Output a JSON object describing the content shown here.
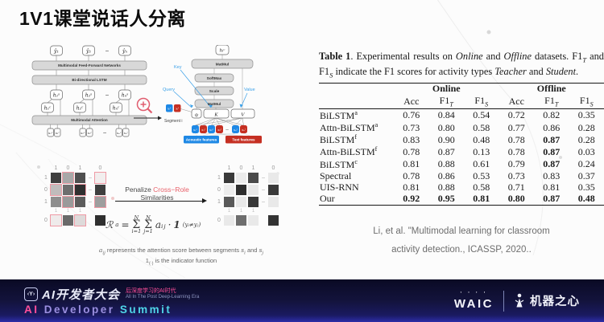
{
  "slide": {
    "title": "1V1课堂说话人分离"
  },
  "architecture": {
    "outputs": [
      "ŷ₁",
      "ŷ₂",
      "−",
      "ŷₙ"
    ],
    "ffn_label": "Multimodal Feed-Forward Networks",
    "lstm_label": "Bi-directional LSTM",
    "hidden_s": [
      "h₁ˢ",
      "h₂ˢ",
      "−",
      "hₙˢ"
    ],
    "hidden_c": [
      "h₁ᶜ",
      "h₂ᶜ",
      "hₙᶜ"
    ],
    "attention_label": "Multimodal Attention",
    "inputs": [
      "x₁ᵃ",
      "x₁ᵗ",
      "x₂ᵃ",
      "x₂ᵗ",
      "−",
      "xₙᵃ",
      "xₙᵗ"
    ]
  },
  "attention_detail": {
    "output_node": "hᵢᶜ",
    "ops": [
      "MatMul",
      "SoftMax",
      "Scale",
      "MatMul"
    ],
    "key_label": "Key",
    "query_label": "Query",
    "value_label": "Value",
    "qkv": [
      "qᵢ",
      "K",
      "V"
    ],
    "segment_label": "Segment i",
    "segment_nodes": [
      "xᵢᵃ",
      "xᵢᵗ"
    ],
    "input_nodes": [
      "x₁ᵃ",
      "x₁ᵗ",
      "x₂ᵃ",
      "x₂ᵗ",
      "−",
      "xₙᵃ",
      "xₙᵗ"
    ],
    "acoustic_label": "Acoustic features",
    "text_label": "Text features",
    "colors": {
      "acoustic": "#1e88e5",
      "text": "#c52f22",
      "annotation": "#3aa0e8"
    }
  },
  "penalty": {
    "label_segments": [
      {
        "t": "Penalize ",
        "s": ""
      },
      {
        "t": "Cross−Role",
        "s": "hl"
      },
      {
        "t": " Similarities",
        "s": ""
      }
    ],
    "before": {
      "col_labels": [
        "1",
        "0",
        "1"
      ],
      "extra_col_label": "0",
      "row_labels": [
        "1",
        "0",
        "1"
      ],
      "mini_labels": [
        "1",
        "1",
        "1"
      ],
      "bottom_label": "0",
      "cells": [
        [
          "#3f3f3f",
          "#a8a8a8",
          "#4f4f4f"
        ],
        [
          "#c0bcbc",
          "#6e6e6e",
          "#2f2f2f"
        ],
        [
          "#8e8e8e",
          "#9a9a9a",
          "#5c5c5c"
        ]
      ],
      "borders": [
        [
          0,
          1,
          0
        ],
        [
          1,
          0,
          1
        ],
        [
          0,
          1,
          0
        ]
      ],
      "extra_col": [
        "#f2eeee",
        "#3f3f3f",
        "#9e9e9e"
      ],
      "extra_col_borders": [
        1,
        0,
        1
      ],
      "bottom_cells": [
        "#efebeb",
        "#6a6a6a",
        "#dedada"
      ],
      "bottom_borders": [
        1,
        0,
        1
      ],
      "corner": "#2f2f2f"
    },
    "after": {
      "col_labels": [
        "1",
        "0",
        "1"
      ],
      "extra_col_label": "0",
      "row_labels": [
        "1",
        "0",
        "1"
      ],
      "mini_labels": [
        "1",
        "1",
        "1"
      ],
      "bottom_label": "0",
      "cells": [
        [
          "#3a3a3a",
          "#ebebeb",
          "#4a4a4a"
        ],
        [
          "#ededed",
          "#2e2e2e",
          "#e8e8e8"
        ],
        [
          "#5a5a5a",
          "#e9e9e9",
          "#383838"
        ]
      ],
      "borders": [
        [
          0,
          0,
          0
        ],
        [
          0,
          0,
          0
        ],
        [
          0,
          0,
          0
        ]
      ],
      "extra_col": [
        "#e9e9e9",
        "#3a3a3a",
        "#e9e9e9"
      ],
      "extra_col_borders": [
        0,
        0,
        0
      ],
      "bottom_cells": [
        "#e9e9e9",
        "#6e6e6e",
        "#e9e9e9"
      ],
      "bottom_borders": [
        0,
        0,
        0
      ],
      "corner": "#333333"
    },
    "formula": {
      "lhs": "ℛ",
      "lhs_sub": "a",
      "eq": "=",
      "sum_sym": "Σ",
      "sum_top": "N",
      "sum_bot1": "i=1",
      "sum_bot2": "j=1",
      "term": "aᵢⱼ",
      "dot": "·",
      "one": "1",
      "cond": "(yᵢ≠yⱼ)"
    },
    "note1_segments": [
      {
        "t": "a",
        "s": "i"
      },
      {
        "t": "ij",
        "s": "sub i"
      },
      {
        "t": " represents the attention score between segments ",
        "s": ""
      },
      {
        "t": "s",
        "s": "i"
      },
      {
        "t": "i",
        "s": "sub i"
      },
      {
        "t": " and ",
        "s": ""
      },
      {
        "t": "s",
        "s": "i"
      },
      {
        "t": "j",
        "s": "sub i"
      }
    ],
    "note2_segments": [
      {
        "t": "1",
        "s": "b"
      },
      {
        "t": "(·)",
        "s": "sub"
      },
      {
        "t": " is the indicator function",
        "s": ""
      }
    ]
  },
  "table": {
    "caption_segments": [
      {
        "t": "Table 1",
        "s": "b"
      },
      {
        "t": ". Experimental results on ",
        "s": ""
      },
      {
        "t": "Online",
        "s": "i"
      },
      {
        "t": " and ",
        "s": ""
      },
      {
        "t": "Offline",
        "s": "i"
      },
      {
        "t": " datasets. F1",
        "s": ""
      },
      {
        "t": "T",
        "s": "sub i"
      },
      {
        "t": " and F1",
        "s": ""
      },
      {
        "t": "S",
        "s": "sub i"
      },
      {
        "t": " indicate the F1 scores for activity types ",
        "s": ""
      },
      {
        "t": "Teacher",
        "s": "i"
      },
      {
        "t": " and ",
        "s": ""
      },
      {
        "t": "Student",
        "s": "i"
      },
      {
        "t": ".",
        "s": ""
      }
    ],
    "group_headers": [
      "Online",
      "Offline"
    ],
    "col_headers": [
      {
        "t": "Acc"
      },
      {
        "t": "F1",
        "sub": "T"
      },
      {
        "t": "F1",
        "sub": "S"
      },
      {
        "t": "Acc"
      },
      {
        "t": "F1",
        "sub": "T"
      },
      {
        "t": "F1",
        "sub": "S"
      }
    ],
    "rows": [
      {
        "name": "BiLSTM",
        "sup": "a",
        "values": [
          "0.76",
          "0.84",
          "0.54",
          "0.72",
          "0.82",
          "0.35"
        ],
        "bold": [
          0,
          0,
          0,
          0,
          0,
          0
        ]
      },
      {
        "name": "Attn-BiLSTM",
        "sup": "a",
        "values": [
          "0.73",
          "0.80",
          "0.58",
          "0.77",
          "0.86",
          "0.28"
        ],
        "bold": [
          0,
          0,
          0,
          0,
          0,
          0
        ]
      },
      {
        "name": "BiLSTM",
        "sup": "f",
        "values": [
          "0.83",
          "0.90",
          "0.48",
          "0.78",
          "0.87",
          "0.28"
        ],
        "bold": [
          0,
          0,
          0,
          0,
          1,
          0
        ]
      },
      {
        "name": "Attn-BiLSTM",
        "sup": "f",
        "values": [
          "0.78",
          "0.87",
          "0.13",
          "0.78",
          "0.87",
          "0.03"
        ],
        "bold": [
          0,
          0,
          0,
          0,
          1,
          0
        ]
      },
      {
        "name": "BiLSTM",
        "sup": "c",
        "values": [
          "0.81",
          "0.88",
          "0.61",
          "0.79",
          "0.87",
          "0.24"
        ],
        "bold": [
          0,
          0,
          0,
          0,
          1,
          0
        ]
      },
      {
        "name": "Spectral",
        "sup": "",
        "values": [
          "0.78",
          "0.86",
          "0.53",
          "0.73",
          "0.83",
          "0.37"
        ],
        "bold": [
          0,
          0,
          0,
          0,
          0,
          0
        ]
      },
      {
        "name": "UIS-RNN",
        "sup": "",
        "values": [
          "0.81",
          "0.88",
          "0.58",
          "0.71",
          "0.81",
          "0.35"
        ],
        "bold": [
          0,
          0,
          0,
          0,
          0,
          0
        ]
      },
      {
        "name": "Our",
        "sup": "",
        "values": [
          "0.92",
          "0.95",
          "0.81",
          "0.80",
          "0.87",
          "0.48"
        ],
        "bold": [
          1,
          1,
          1,
          1,
          1,
          1
        ]
      }
    ],
    "citation_line1": "Li, et al. \"Multimodal learning for classroom",
    "citation_line2": "activity detection., ICASSP, 2020.."
  },
  "footer": {
    "logo_glyph": "‹Y›",
    "title_cn": "AI开发者大会",
    "subtitle_cn": "后深度学习的AI时代",
    "subtitle_en": "All In The Post Deep-Learning Era",
    "summit_ai": "AI",
    "summit_dev": "Developer",
    "summit_sum": "Summit",
    "waic_marks": "' ' ' '",
    "waic": "WAIC",
    "brand_cn": "机器之心",
    "colors": {
      "pink": "#ff4f9a",
      "purple": "#9b8fe0",
      "cyan": "#4fd6e8"
    }
  }
}
